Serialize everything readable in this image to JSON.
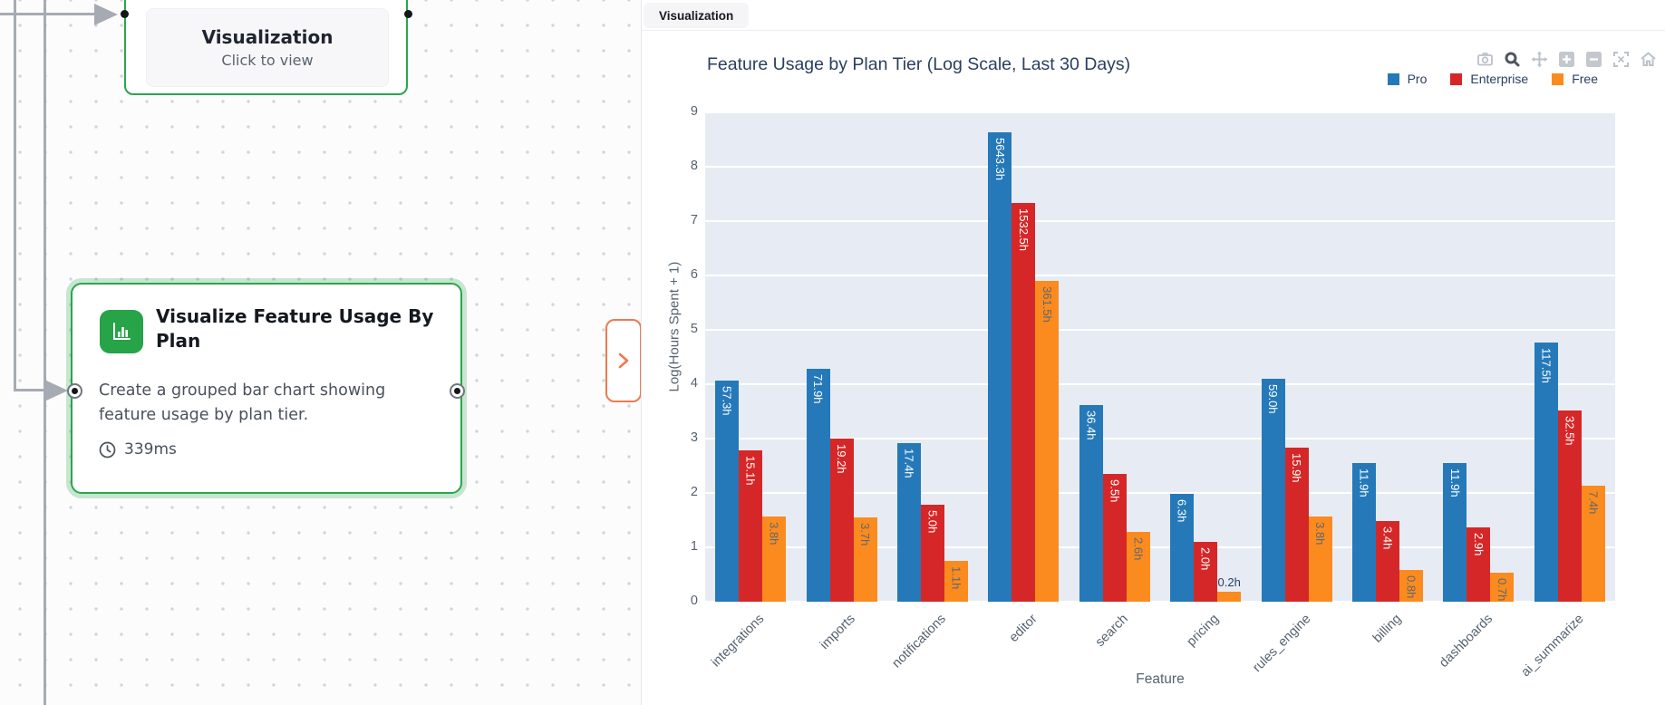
{
  "canvas": {
    "node_preview": {
      "title": "Visualization",
      "subtitle": "Click to view"
    },
    "node_task": {
      "title": "Visualize Feature Usage By Plan",
      "description": "Create a grouped bar chart showing feature usage by plan tier.",
      "duration": "339ms"
    },
    "expand_button_glyph": "chevron-right"
  },
  "panel": {
    "tab": "Visualization",
    "toolbar_icons": [
      "camera",
      "zoom",
      "pan",
      "zoom-in",
      "zoom-out",
      "autoscale",
      "reset-axes"
    ]
  },
  "chart_data": {
    "type": "bar",
    "title": "Feature Usage by Plan Tier (Log Scale, Last 30 Days)",
    "xlabel": "Feature",
    "ylabel": "Log(Hours Spent + 1)",
    "ylim": [
      0,
      9
    ],
    "yticks": [
      0,
      1,
      2,
      3,
      4,
      5,
      6,
      7,
      8,
      9
    ],
    "grid": true,
    "legend_position": "top-right",
    "bar_labels_unit": "h",
    "categories": [
      "integrations",
      "imports",
      "notifications",
      "editor",
      "search",
      "pricing",
      "rules_engine",
      "billing",
      "dashboards",
      "ai_summarize"
    ],
    "series": [
      {
        "name": "Pro",
        "color": "#2579b9",
        "label_color": "#ffffff",
        "values": [
          57.3,
          71.9,
          17.4,
          5643.3,
          36.4,
          6.3,
          59.0,
          11.9,
          11.9,
          117.5
        ]
      },
      {
        "name": "Enterprise",
        "color": "#d62728",
        "label_color": "#ffffff",
        "values": [
          15.1,
          19.2,
          5.0,
          1532.5,
          9.5,
          2.0,
          15.9,
          3.4,
          2.9,
          32.5
        ]
      },
      {
        "name": "Free",
        "color": "#fb8b1e",
        "label_color": "#5d6774",
        "values": [
          3.8,
          3.7,
          1.1,
          361.5,
          2.6,
          0.2,
          3.8,
          0.8,
          0.7,
          7.4
        ]
      }
    ]
  },
  "colors": {
    "node_border_green": "#2aa64d",
    "icon_green": "#27a348",
    "connector_gray": "#a6abb3",
    "expand_orange": "#ee7a50",
    "plot_background": "#e7ecf4",
    "chart_text": "#2a3f5f",
    "axis_text": "#56626f"
  }
}
